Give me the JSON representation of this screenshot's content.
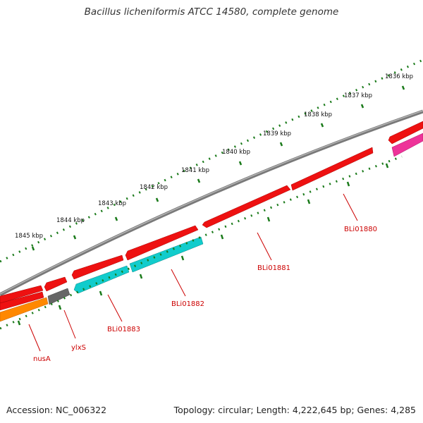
{
  "title": "Bacillus licheniformis ATCC 14580, complete genome",
  "footer": {
    "accession": "Accession: NC_006322",
    "summary": "Topology: circular; Length: 4,222,645 bp; Genes: 4,285"
  },
  "colors": {
    "backbone": "#7a7a7a",
    "tick": "#1a7a1a",
    "label": "#cc0000",
    "leader": "#cc0000"
  },
  "scale_labels": [
    "1836 kbp",
    "1837 kbp",
    "1838 kbp",
    "1839 kbp",
    "1840 kbp",
    "1841 kbp",
    "1842 kbp",
    "1843 kbp",
    "1844 kbp",
    "1845 kbp"
  ],
  "genes": [
    {
      "name": "BLi01880",
      "color": "#ee1111",
      "strand": "outer"
    },
    {
      "name": "BLi01881",
      "color": "#ee1111",
      "strand": "outer"
    },
    {
      "name": "BLi01882",
      "color": "#11cccc",
      "strand": "inner"
    },
    {
      "name": "BLi01883",
      "color": "#11cccc",
      "strand": "inner"
    },
    {
      "name": "ylxS",
      "color": "#666666",
      "strand": "inner"
    },
    {
      "name": "nusA",
      "color": "#ff8800",
      "strand": "inner"
    }
  ],
  "unlabeled_features": [
    {
      "color": "#ee1111"
    },
    {
      "color": "#ee3399"
    }
  ]
}
